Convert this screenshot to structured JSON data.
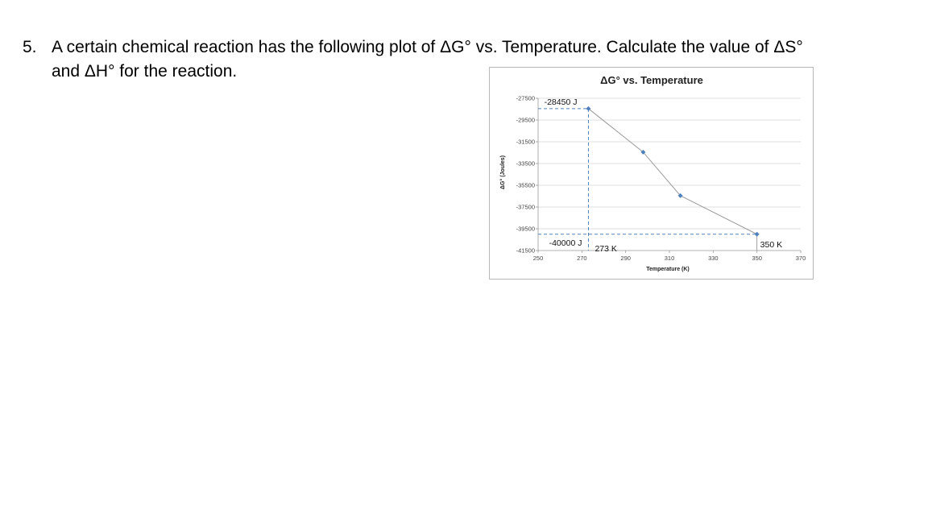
{
  "question": {
    "number": "5.",
    "line1": "A certain chemical reaction has the following plot of ΔG° vs. Temperature.  Calculate the value of ΔS°",
    "line2": "and ΔH° for the reaction."
  },
  "chart_data": {
    "type": "scatter",
    "title": "ΔG° vs. Temperature",
    "xlabel": "Temperature (K)",
    "ylabel": "ΔG° (Joules)",
    "xlim": [
      250,
      370
    ],
    "ylim": [
      -41500,
      -27500
    ],
    "x_ticks": [
      250,
      270,
      290,
      310,
      330,
      350,
      370
    ],
    "y_ticks": [
      -27500,
      -29500,
      -31500,
      -33500,
      -35500,
      -37500,
      -39500,
      -41500
    ],
    "grid": true,
    "legend": "none",
    "series": [
      {
        "x": [
          273,
          298,
          315,
          350
        ],
        "y": [
          -28450,
          -32450,
          -36450,
          -40000
        ],
        "color": "#4f81bd"
      }
    ],
    "annotations": [
      {
        "text": "-28450 J",
        "x": 273,
        "y": -28450
      },
      {
        "text": "-40000 J",
        "x": 273,
        "y": -40000
      },
      {
        "text": "273 K",
        "x": 273,
        "y": -40000
      },
      {
        "text": "350 K",
        "x": 350,
        "y": -40000
      }
    ]
  }
}
